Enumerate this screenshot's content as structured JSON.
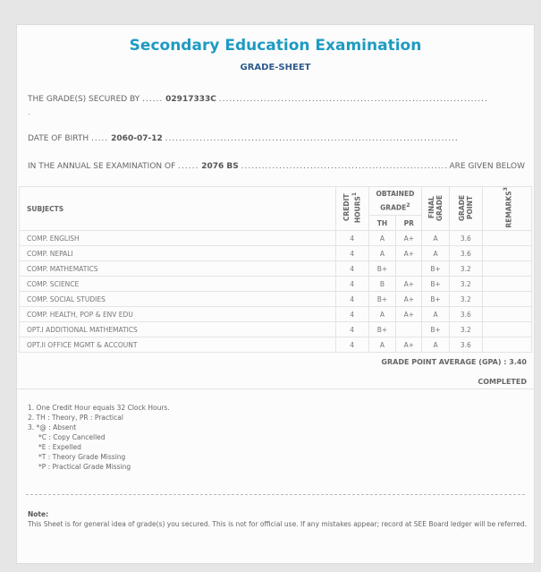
{
  "header": {
    "title": "Secondary Education Examination",
    "subtitle": "GRADE-SHEET"
  },
  "info": {
    "secured_by_label": "THE GRADE(S) SECURED BY",
    "secured_by_value": "02917333C",
    "dob_label": "DATE OF BIRTH",
    "dob_value": "2060-07-12",
    "exam_label": "IN THE ANNUAL SE EXAMINATION OF",
    "exam_value": "2076 BS",
    "exam_suffix": "ARE GIVEN BELOW"
  },
  "table": {
    "headers": {
      "subjects": "SUBJECTS",
      "credit": "CREDIT HOURS",
      "credit_sup": "1",
      "obtained": "OBTAINED GRADE",
      "obtained_sup": "2",
      "th": "TH",
      "pr": "PR",
      "final": "FINAL GRADE",
      "gp": "GRADE POINT",
      "remarks": "REMARKS",
      "remarks_sup": "3"
    },
    "rows": [
      {
        "subject": "COMP. ENGLISH",
        "credit": "4",
        "th": "A",
        "pr": "A+",
        "final": "A",
        "gp": "3.6",
        "remarks": ""
      },
      {
        "subject": "COMP. NEPALI",
        "credit": "4",
        "th": "A",
        "pr": "A+",
        "final": "A",
        "gp": "3.6",
        "remarks": ""
      },
      {
        "subject": "COMP. MATHEMATICS",
        "credit": "4",
        "th": "B+",
        "pr": "",
        "final": "B+",
        "gp": "3.2",
        "remarks": ""
      },
      {
        "subject": "COMP. SCIENCE",
        "credit": "4",
        "th": "B",
        "pr": "A+",
        "final": "B+",
        "gp": "3.2",
        "remarks": ""
      },
      {
        "subject": "COMP. SOCIAL STUDIES",
        "credit": "4",
        "th": "B+",
        "pr": "A+",
        "final": "B+",
        "gp": "3.2",
        "remarks": ""
      },
      {
        "subject": "COMP. HEALTH, POP & ENV EDU",
        "credit": "4",
        "th": "A",
        "pr": "A+",
        "final": "A",
        "gp": "3.6",
        "remarks": ""
      },
      {
        "subject": "OPT.I ADDITIONAL MATHEMATICS",
        "credit": "4",
        "th": "B+",
        "pr": "",
        "final": "B+",
        "gp": "3.2",
        "remarks": ""
      },
      {
        "subject": "OPT.II OFFICE MGMT & ACCOUNT",
        "credit": "4",
        "th": "A",
        "pr": "A+",
        "final": "A",
        "gp": "3.6",
        "remarks": ""
      }
    ]
  },
  "summary": {
    "gpa": "GRADE POINT AVERAGE (GPA) : 3.40",
    "status": "COMPLETED"
  },
  "footnotes": [
    "1. One Credit Hour equals 32 Clock Hours.",
    "2. TH : Theory, PR : Practical",
    "3. *@ : Absent",
    "*C : Copy Cancelled",
    "*E : Expelled",
    "*T : Theory Grade Missing",
    "*P : Practical Grade Missing"
  ],
  "note": {
    "label": "Note:",
    "text": "This Sheet is for general idea of grade(s) you secured. This is not for official use. If any mistakes appear; record at SEE Board ledger will be referred."
  }
}
